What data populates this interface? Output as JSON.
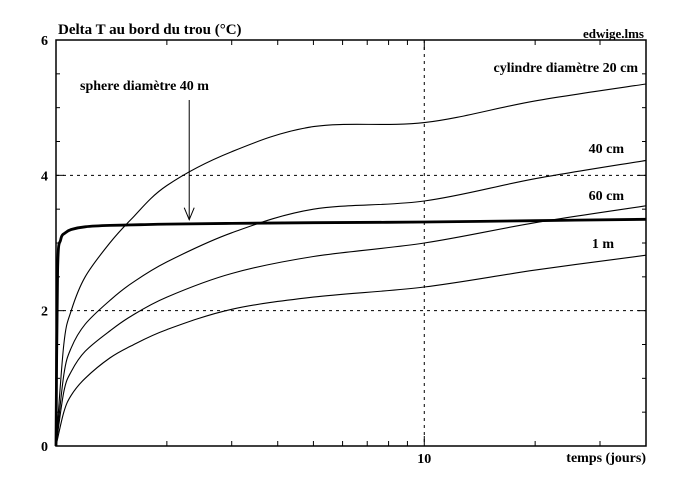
{
  "chart_data": {
    "type": "line",
    "title": "Delta T au bord du trou (°C)",
    "source_label": "edwige.lms",
    "xlabel": "temps (jours)",
    "ylabel": "",
    "x_scale": "log",
    "xlim": [
      1,
      40
    ],
    "ylim": [
      0,
      6
    ],
    "x_ticks": [
      10
    ],
    "x_tick_labels": [
      "10"
    ],
    "x_minor_ticks": [
      2,
      3,
      4,
      5,
      6,
      7,
      8,
      9,
      20,
      30,
      40
    ],
    "y_ticks": [
      0,
      2,
      4,
      6
    ],
    "y_tick_labels": [
      "0",
      "2",
      "4",
      "6"
    ],
    "grid": true,
    "grid_style": "dashed at labeled ticks",
    "series": [
      {
        "name": "sphere diamètre 40 m",
        "bold": true,
        "points": [
          [
            1.0,
            0.0
          ],
          [
            1.01,
            2.6
          ],
          [
            1.03,
            3.05
          ],
          [
            1.06,
            3.15
          ],
          [
            1.1,
            3.2
          ],
          [
            1.2,
            3.24
          ],
          [
            1.4,
            3.26
          ],
          [
            1.7,
            3.27
          ],
          [
            2.0,
            3.28
          ],
          [
            3.0,
            3.29
          ],
          [
            5.0,
            3.3
          ],
          [
            10.0,
            3.31
          ],
          [
            20.0,
            3.33
          ],
          [
            40.0,
            3.35
          ]
        ]
      },
      {
        "name": "cylindre diamètre 20 cm",
        "bold": false,
        "points": [
          [
            1.0,
            0.0
          ],
          [
            1.05,
            1.5
          ],
          [
            1.1,
            2.0
          ],
          [
            1.2,
            2.5
          ],
          [
            1.4,
            3.0
          ],
          [
            1.6,
            3.35
          ],
          [
            2.0,
            3.85
          ],
          [
            3.0,
            4.35
          ],
          [
            5.0,
            4.72
          ],
          [
            10.0,
            4.78
          ],
          [
            20.0,
            5.1
          ],
          [
            40.0,
            5.35
          ]
        ]
      },
      {
        "name": "40 cm",
        "bold": false,
        "points": [
          [
            1.0,
            0.0
          ],
          [
            1.05,
            1.05
          ],
          [
            1.1,
            1.45
          ],
          [
            1.2,
            1.8
          ],
          [
            1.4,
            2.15
          ],
          [
            1.6,
            2.4
          ],
          [
            2.0,
            2.72
          ],
          [
            3.0,
            3.15
          ],
          [
            5.0,
            3.5
          ],
          [
            10.0,
            3.62
          ],
          [
            20.0,
            3.95
          ],
          [
            40.0,
            4.22
          ]
        ]
      },
      {
        "name": "60 cm",
        "bold": false,
        "points": [
          [
            1.0,
            0.0
          ],
          [
            1.05,
            0.8
          ],
          [
            1.1,
            1.1
          ],
          [
            1.2,
            1.4
          ],
          [
            1.4,
            1.7
          ],
          [
            1.6,
            1.92
          ],
          [
            2.0,
            2.2
          ],
          [
            3.0,
            2.55
          ],
          [
            5.0,
            2.8
          ],
          [
            10.0,
            3.0
          ],
          [
            20.0,
            3.3
          ],
          [
            40.0,
            3.55
          ]
        ]
      },
      {
        "name": "1 m",
        "bold": false,
        "points": [
          [
            1.0,
            0.0
          ],
          [
            1.05,
            0.5
          ],
          [
            1.1,
            0.75
          ],
          [
            1.2,
            1.0
          ],
          [
            1.4,
            1.3
          ],
          [
            1.6,
            1.48
          ],
          [
            2.0,
            1.72
          ],
          [
            3.0,
            2.02
          ],
          [
            5.0,
            2.2
          ],
          [
            10.0,
            2.35
          ],
          [
            20.0,
            2.6
          ],
          [
            40.0,
            2.82
          ]
        ]
      }
    ],
    "annotations": [
      {
        "text": "sphere diamètre 40 m",
        "target_x": 2.3,
        "target_y": 3.3
      }
    ]
  }
}
